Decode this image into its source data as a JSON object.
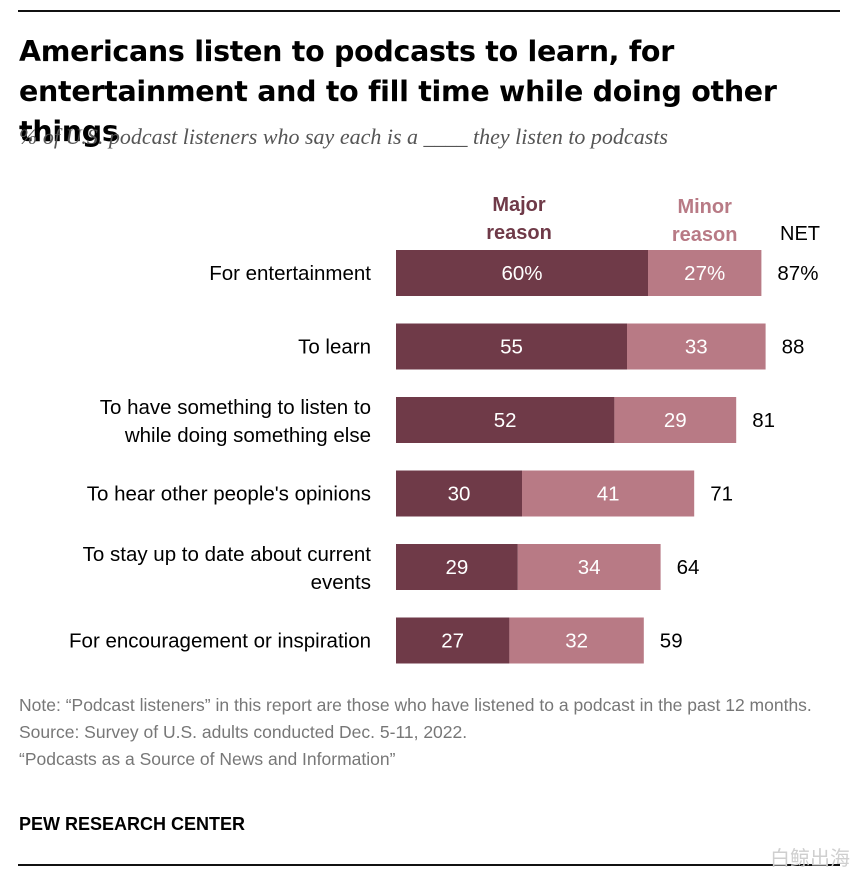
{
  "header": {
    "title": "Americans listen to podcasts to learn, for entertainment and to fill time while doing other things",
    "subtitle": "% of U.S. podcast listeners who say each is a ____ they listen to podcasts"
  },
  "chart_data": {
    "type": "bar",
    "orientation": "horizontal",
    "stacked": true,
    "categories": [
      "For entertainment",
      "To learn",
      "To have something to listen to while doing something else",
      "To hear other people's opinions",
      "To stay up to date about current events",
      "For encouragement or inspiration"
    ],
    "category_lines": [
      [
        "For entertainment"
      ],
      [
        "To learn"
      ],
      [
        "To have something to listen to",
        "while doing something else"
      ],
      [
        "To hear other people's opinions"
      ],
      [
        "To stay up to date about current",
        "events"
      ],
      [
        "For encouragement or inspiration"
      ]
    ],
    "series": [
      {
        "name": "Major reason",
        "name_lines": [
          "Major",
          "reason"
        ],
        "values": [
          60,
          55,
          52,
          30,
          29,
          27
        ],
        "labels": [
          "60%",
          "55",
          "52",
          "30",
          "29",
          "27"
        ],
        "color": "#6f3a48"
      },
      {
        "name": "Minor reason",
        "name_lines": [
          "Minor",
          "reason"
        ],
        "values": [
          27,
          33,
          29,
          41,
          34,
          32
        ],
        "labels": [
          "27%",
          "33",
          "29",
          "41",
          "34",
          "32"
        ],
        "color": "#b87a85"
      }
    ],
    "net": {
      "label": "NET",
      "values": [
        87,
        88,
        81,
        71,
        64,
        59
      ],
      "labels": [
        "87%",
        "88",
        "81",
        "71",
        "64",
        "59"
      ]
    },
    "grid": false,
    "legend": "top"
  },
  "notes": {
    "note": "Note: “Podcast listeners” in this report are those who have listened to a podcast in the past 12 months.",
    "source": "Source: Survey of U.S. adults conducted Dec. 5-11, 2022.",
    "report": "“Podcasts as a Source of News and Information”",
    "org": "PEW RESEARCH CENTER"
  },
  "watermark": "白鲸出海"
}
